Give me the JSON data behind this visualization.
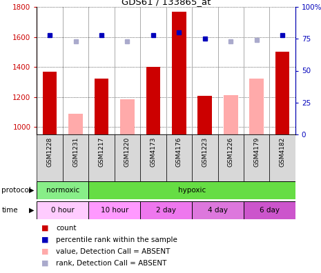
{
  "title": "GDS61 / 133865_at",
  "samples": [
    "GSM1228",
    "GSM1231",
    "GSM1217",
    "GSM1220",
    "GSM4173",
    "GSM4176",
    "GSM1223",
    "GSM1226",
    "GSM4179",
    "GSM4182"
  ],
  "bar_values": [
    1370,
    null,
    1320,
    null,
    1400,
    1770,
    1205,
    null,
    null,
    1500
  ],
  "absent_bar_values": [
    null,
    1090,
    null,
    1185,
    null,
    null,
    null,
    1210,
    1320,
    null
  ],
  "rank_values": [
    78,
    null,
    78,
    null,
    78,
    80,
    75,
    null,
    null,
    78
  ],
  "absent_rank_values": [
    null,
    73,
    null,
    73,
    null,
    null,
    null,
    73,
    74,
    null
  ],
  "ylim_left": [
    950,
    1800
  ],
  "ylim_right": [
    0,
    100
  ],
  "yticks_left": [
    1000,
    1200,
    1400,
    1600,
    1800
  ],
  "yticks_right": [
    0,
    25,
    50,
    75,
    100
  ],
  "bar_color": "#cc0000",
  "absent_bar_color": "#ffaaaa",
  "rank_color": "#0000bb",
  "absent_rank_color": "#aaaacc",
  "bar_width": 0.55,
  "norm_color": "#88ee88",
  "hyp_color": "#66dd44",
  "time_colors": [
    "#ffccff",
    "#ff99ff",
    "#ee77ee",
    "#dd77dd",
    "#cc55cc"
  ],
  "time_labels": [
    "0 hour",
    "10 hour",
    "2 day",
    "4 day",
    "6 day"
  ],
  "ylabel_left_color": "#cc0000",
  "ylabel_right_color": "#0000bb",
  "bg_color": "#ffffff"
}
